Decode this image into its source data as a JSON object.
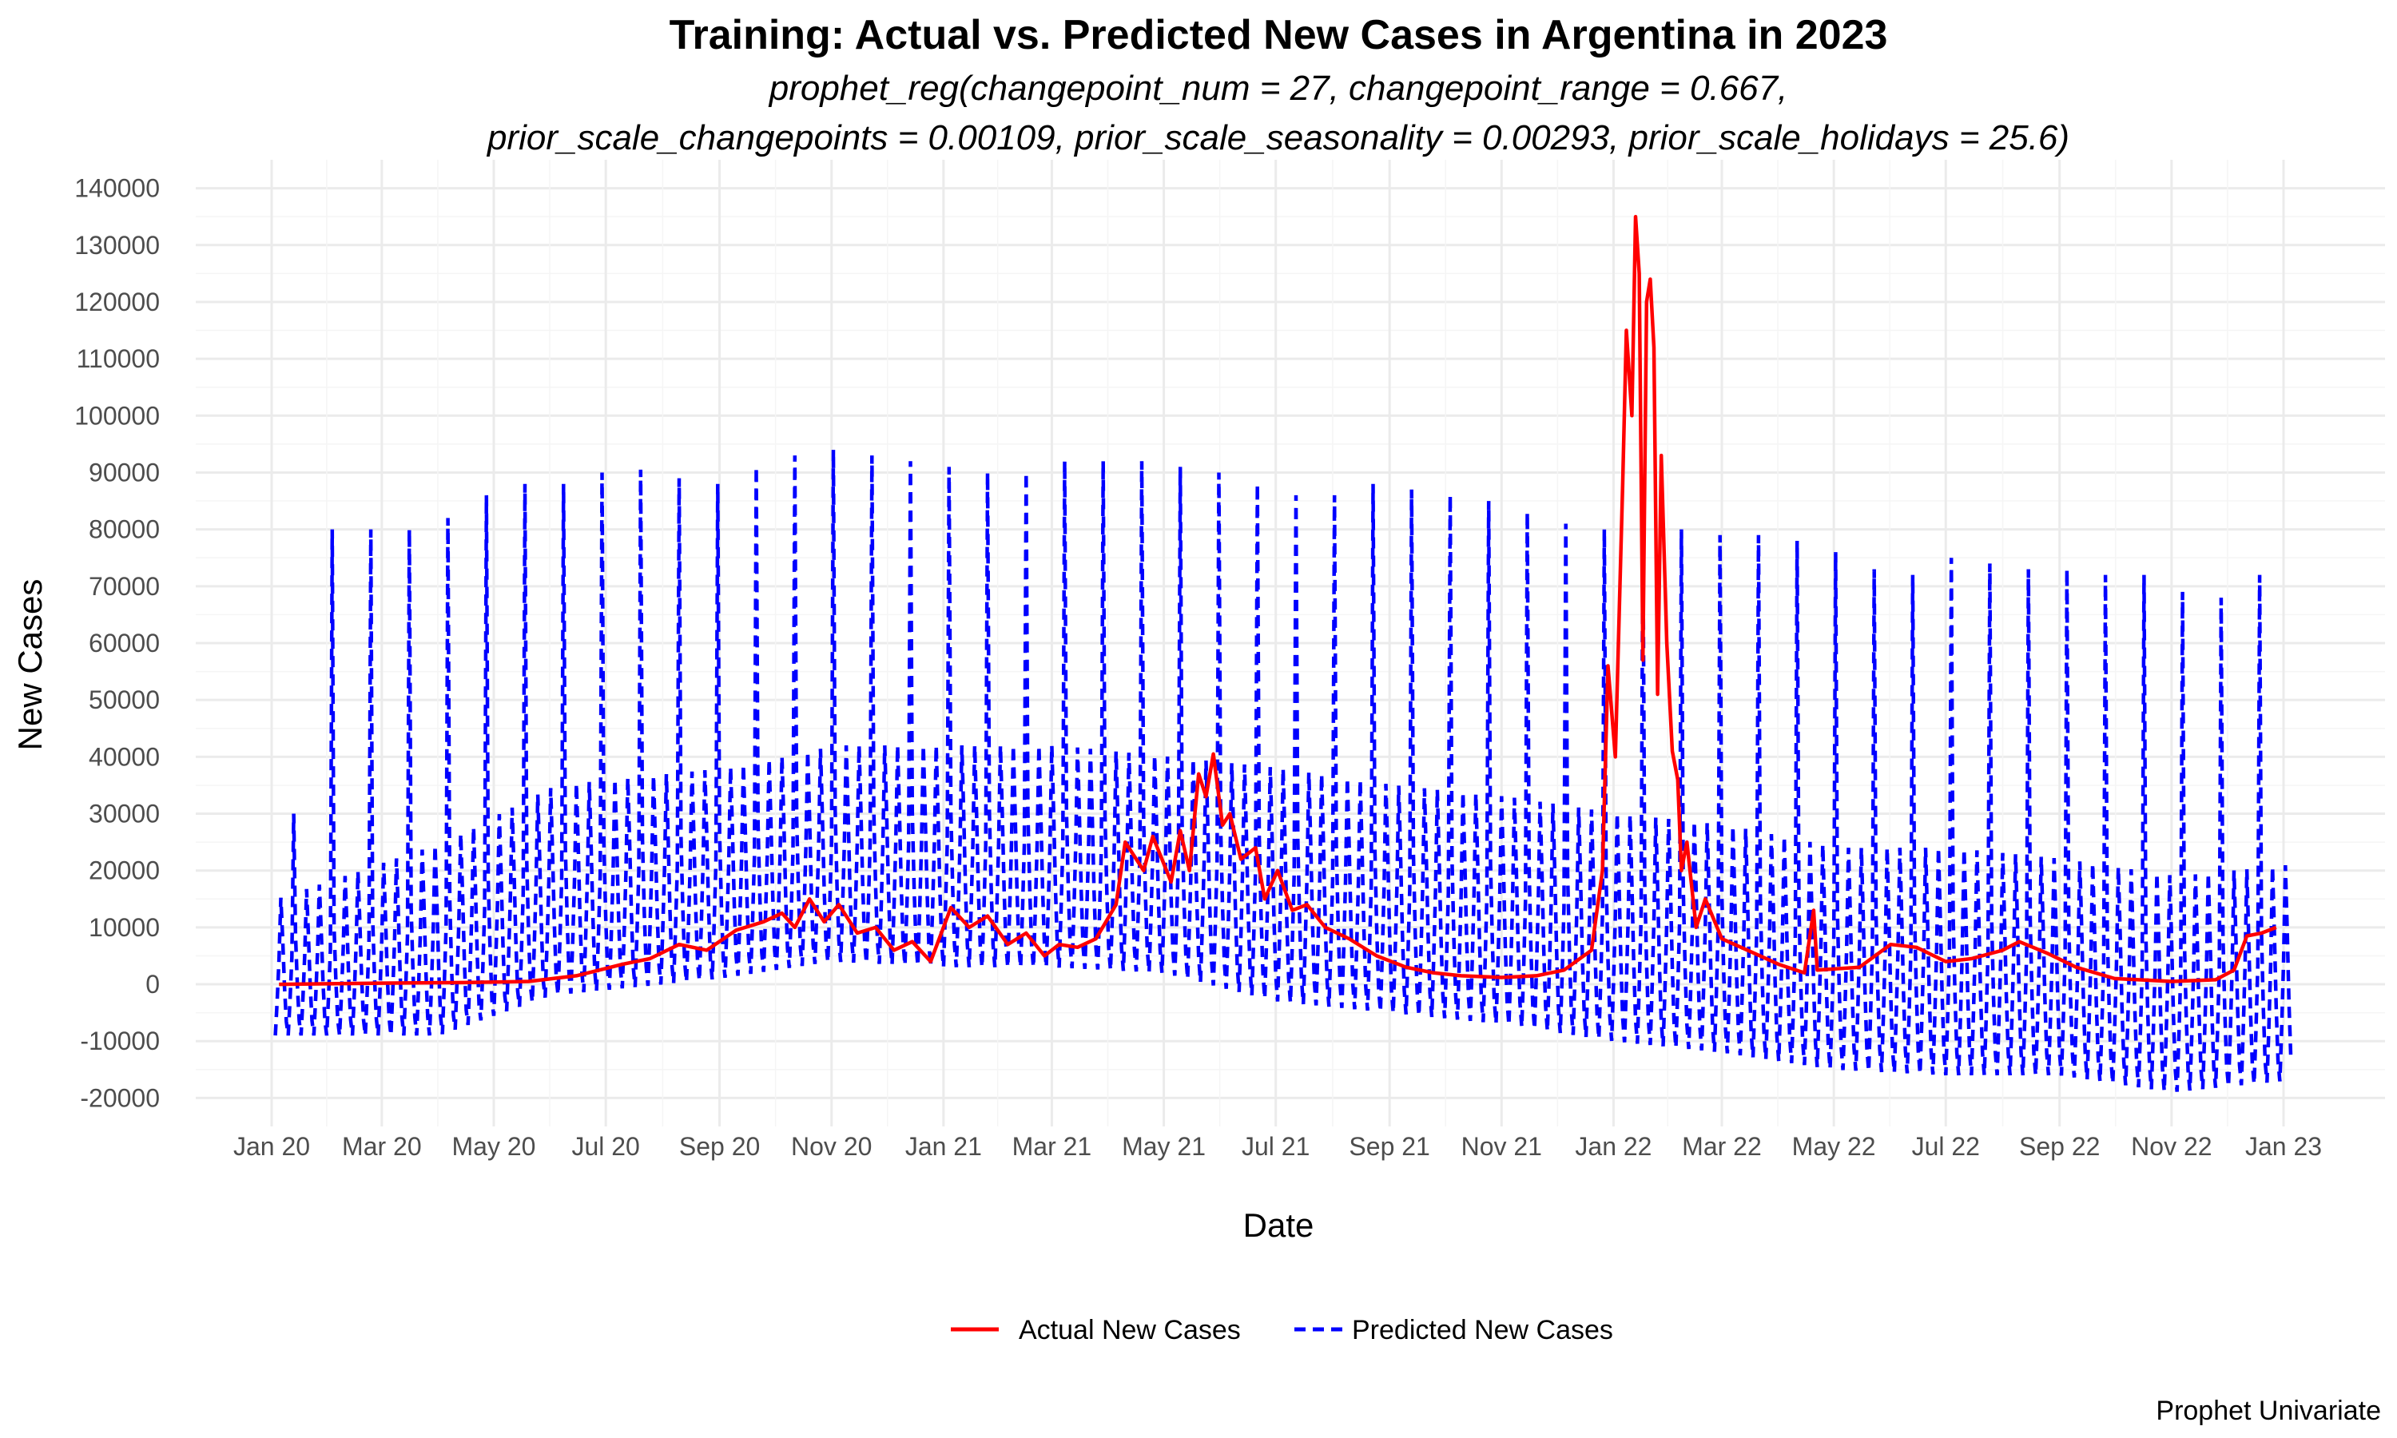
{
  "chart_data": {
    "type": "line",
    "title": "Training: Actual vs. Predicted New Cases in Argentina in 2023",
    "subtitle": "prophet_reg(changepoint_num = 27, changepoint_range = 0.667,\nprior_scale_changepoints = 0.00109, prior_scale_seasonality = 0.00293, prior_scale_holidays = 25.6)",
    "xlabel": "Date",
    "ylabel": "New Cases",
    "caption": "Prophet Univariate",
    "x_range": [
      "2020-01-01",
      "2023-01-01"
    ],
    "ylim": [
      -25000,
      145000
    ],
    "x_ticks": [
      {
        "date": "2020-01-01",
        "label": "Jan 20"
      },
      {
        "date": "2020-03-01",
        "label": "Mar 20"
      },
      {
        "date": "2020-05-01",
        "label": "May 20"
      },
      {
        "date": "2020-07-01",
        "label": "Jul 20"
      },
      {
        "date": "2020-09-01",
        "label": "Sep 20"
      },
      {
        "date": "2020-11-01",
        "label": "Nov 20"
      },
      {
        "date": "2021-01-01",
        "label": "Jan 21"
      },
      {
        "date": "2021-03-01",
        "label": "Mar 21"
      },
      {
        "date": "2021-05-01",
        "label": "May 21"
      },
      {
        "date": "2021-07-01",
        "label": "Jul 21"
      },
      {
        "date": "2021-09-01",
        "label": "Sep 21"
      },
      {
        "date": "2021-11-01",
        "label": "Nov 21"
      },
      {
        "date": "2022-01-01",
        "label": "Jan 22"
      },
      {
        "date": "2022-03-01",
        "label": "Mar 22"
      },
      {
        "date": "2022-05-01",
        "label": "May 22"
      },
      {
        "date": "2022-07-01",
        "label": "Jul 22"
      },
      {
        "date": "2022-09-01",
        "label": "Sep 22"
      },
      {
        "date": "2022-11-01",
        "label": "Nov 22"
      },
      {
        "date": "2023-01-01",
        "label": "Jan 23"
      }
    ],
    "y_ticks": [
      -20000,
      -10000,
      0,
      10000,
      20000,
      30000,
      40000,
      50000,
      60000,
      70000,
      80000,
      90000,
      100000,
      110000,
      120000,
      130000,
      140000
    ],
    "grid": true,
    "legend_position": "bottom",
    "series": [
      {
        "name": "Actual New Cases",
        "color": "#ff0000",
        "style": "solid",
        "points": [
          [
            "2020-01-05",
            0
          ],
          [
            "2020-03-01",
            200
          ],
          [
            "2020-04-15",
            300
          ],
          [
            "2020-05-20",
            500
          ],
          [
            "2020-06-15",
            1500
          ],
          [
            "2020-07-10",
            3500
          ],
          [
            "2020-07-25",
            4500
          ],
          [
            "2020-08-10",
            7000
          ],
          [
            "2020-08-25",
            6000
          ],
          [
            "2020-09-10",
            9500
          ],
          [
            "2020-09-25",
            11000
          ],
          [
            "2020-10-05",
            12500
          ],
          [
            "2020-10-12",
            10000
          ],
          [
            "2020-10-20",
            15000
          ],
          [
            "2020-10-28",
            11000
          ],
          [
            "2020-11-05",
            14000
          ],
          [
            "2020-11-15",
            9000
          ],
          [
            "2020-11-25",
            10000
          ],
          [
            "2020-12-05",
            6000
          ],
          [
            "2020-12-15",
            7500
          ],
          [
            "2020-12-25",
            4000
          ],
          [
            "2021-01-05",
            13500
          ],
          [
            "2021-01-15",
            10000
          ],
          [
            "2021-01-25",
            12000
          ],
          [
            "2021-02-05",
            7000
          ],
          [
            "2021-02-15",
            9000
          ],
          [
            "2021-02-25",
            5000
          ],
          [
            "2021-03-05",
            7000
          ],
          [
            "2021-03-15",
            6500
          ],
          [
            "2021-03-25",
            8000
          ],
          [
            "2021-04-05",
            14000
          ],
          [
            "2021-04-10",
            25000
          ],
          [
            "2021-04-20",
            20000
          ],
          [
            "2021-04-25",
            26000
          ],
          [
            "2021-05-05",
            18000
          ],
          [
            "2021-05-10",
            27000
          ],
          [
            "2021-05-15",
            20000
          ],
          [
            "2021-05-20",
            37000
          ],
          [
            "2021-05-24",
            33000
          ],
          [
            "2021-05-28",
            40500
          ],
          [
            "2021-06-02",
            28000
          ],
          [
            "2021-06-06",
            30000
          ],
          [
            "2021-06-12",
            22000
          ],
          [
            "2021-06-20",
            24000
          ],
          [
            "2021-06-25",
            15000
          ],
          [
            "2021-07-02",
            20000
          ],
          [
            "2021-07-10",
            13000
          ],
          [
            "2021-07-18",
            14000
          ],
          [
            "2021-07-28",
            10000
          ],
          [
            "2021-08-10",
            8000
          ],
          [
            "2021-08-25",
            5000
          ],
          [
            "2021-09-10",
            3000
          ],
          [
            "2021-09-25",
            2000
          ],
          [
            "2021-10-10",
            1500
          ],
          [
            "2021-11-01",
            1200
          ],
          [
            "2021-11-20",
            1500
          ],
          [
            "2021-12-05",
            2500
          ],
          [
            "2021-12-20",
            6000
          ],
          [
            "2021-12-26",
            20000
          ],
          [
            "2021-12-29",
            56000
          ],
          [
            "2022-01-02",
            40000
          ],
          [
            "2022-01-06",
            88000
          ],
          [
            "2022-01-08",
            115000
          ],
          [
            "2022-01-11",
            100000
          ],
          [
            "2022-01-13",
            135000
          ],
          [
            "2022-01-15",
            125000
          ],
          [
            "2022-01-17",
            57000
          ],
          [
            "2022-01-19",
            120000
          ],
          [
            "2022-01-21",
            124000
          ],
          [
            "2022-01-23",
            112000
          ],
          [
            "2022-01-25",
            51000
          ],
          [
            "2022-01-27",
            93000
          ],
          [
            "2022-01-30",
            60000
          ],
          [
            "2022-02-02",
            41000
          ],
          [
            "2022-02-05",
            36000
          ],
          [
            "2022-02-07",
            20000
          ],
          [
            "2022-02-10",
            25000
          ],
          [
            "2022-02-15",
            10000
          ],
          [
            "2022-02-20",
            15000
          ],
          [
            "2022-03-01",
            8000
          ],
          [
            "2022-03-15",
            6000
          ],
          [
            "2022-04-01",
            3500
          ],
          [
            "2022-04-15",
            2000
          ],
          [
            "2022-04-20",
            13000
          ],
          [
            "2022-04-22",
            2500
          ],
          [
            "2022-05-15",
            3000
          ],
          [
            "2022-06-01",
            7000
          ],
          [
            "2022-06-15",
            6500
          ],
          [
            "2022-07-01",
            4000
          ],
          [
            "2022-07-15",
            4500
          ],
          [
            "2022-08-01",
            6000
          ],
          [
            "2022-08-10",
            7500
          ],
          [
            "2022-08-25",
            5500
          ],
          [
            "2022-09-10",
            3000
          ],
          [
            "2022-10-01",
            1000
          ],
          [
            "2022-11-01",
            500
          ],
          [
            "2022-11-25",
            800
          ],
          [
            "2022-12-05",
            2500
          ],
          [
            "2022-12-12",
            8500
          ],
          [
            "2022-12-20",
            9000
          ],
          [
            "2022-12-28",
            10000
          ]
        ]
      },
      {
        "name": "Predicted New Cases",
        "color": "#0000ff",
        "style": "dashed",
        "weekly_peaks": [
          [
            "2020-01-15",
            30000
          ],
          [
            "2020-02-05",
            80000
          ],
          [
            "2020-02-26",
            80000
          ],
          [
            "2020-03-18",
            80000
          ],
          [
            "2020-04-08",
            82000
          ],
          [
            "2020-04-29",
            86000
          ],
          [
            "2020-05-20",
            88000
          ],
          [
            "2020-06-10",
            88000
          ],
          [
            "2020-07-01",
            90000
          ],
          [
            "2020-07-22",
            90500
          ],
          [
            "2020-08-12",
            89000
          ],
          [
            "2020-09-02",
            88000
          ],
          [
            "2020-09-23",
            91000
          ],
          [
            "2020-10-14",
            93000
          ],
          [
            "2020-11-04",
            94000
          ],
          [
            "2020-11-25",
            93000
          ],
          [
            "2020-12-16",
            92000
          ],
          [
            "2021-01-06",
            91000
          ],
          [
            "2021-01-27",
            90000
          ],
          [
            "2021-02-17",
            90000
          ],
          [
            "2021-03-10",
            92000
          ],
          [
            "2021-03-31",
            92000
          ],
          [
            "2021-04-21",
            92000
          ],
          [
            "2021-05-12",
            91000
          ],
          [
            "2021-06-02",
            90000
          ],
          [
            "2021-06-23",
            88000
          ],
          [
            "2021-07-14",
            86000
          ],
          [
            "2021-08-04",
            86000
          ],
          [
            "2021-08-25",
            88000
          ],
          [
            "2021-09-15",
            87000
          ],
          [
            "2021-10-06",
            86000
          ],
          [
            "2021-10-27",
            85000
          ],
          [
            "2021-11-17",
            83000
          ],
          [
            "2021-12-08",
            81000
          ],
          [
            "2021-12-29",
            80000
          ],
          [
            "2022-01-19",
            80000
          ],
          [
            "2022-02-09",
            80000
          ],
          [
            "2022-03-02",
            79000
          ],
          [
            "2022-03-23",
            79000
          ],
          [
            "2022-04-13",
            78000
          ],
          [
            "2022-05-04",
            76000
          ],
          [
            "2022-05-25",
            73000
          ],
          [
            "2022-06-15",
            72000
          ],
          [
            "2022-07-06",
            75000
          ],
          [
            "2022-07-27",
            74000
          ],
          [
            "2022-08-17",
            73000
          ],
          [
            "2022-09-07",
            73000
          ],
          [
            "2022-09-28",
            72000
          ],
          [
            "2022-10-19",
            72000
          ],
          [
            "2022-11-09",
            69000
          ],
          [
            "2022-11-30",
            68000
          ],
          [
            "2022-12-21",
            72000
          ]
        ],
        "trend": [
          [
            "2020-01-01",
            -9000,
            15000
          ],
          [
            "2020-04-01",
            -9000,
            25000
          ],
          [
            "2020-06-01",
            -2000,
            35000
          ],
          [
            "2020-09-01",
            1000,
            38000
          ],
          [
            "2020-11-01",
            4000,
            42000
          ],
          [
            "2021-01-01",
            3000,
            42000
          ],
          [
            "2021-03-01",
            3000,
            42000
          ],
          [
            "2021-05-01",
            2000,
            40000
          ],
          [
            "2021-07-01",
            -3000,
            38000
          ],
          [
            "2021-09-01",
            -5000,
            35000
          ],
          [
            "2021-11-01",
            -7000,
            33000
          ],
          [
            "2022-01-01",
            -10000,
            30000
          ],
          [
            "2022-03-01",
            -12000,
            28000
          ],
          [
            "2022-05-01",
            -15000,
            24000
          ],
          [
            "2022-07-01",
            -16000,
            24000
          ],
          [
            "2022-09-01",
            -16000,
            22000
          ],
          [
            "2022-11-01",
            -19000,
            19000
          ],
          [
            "2023-01-01",
            -17000,
            21000
          ]
        ]
      }
    ]
  }
}
